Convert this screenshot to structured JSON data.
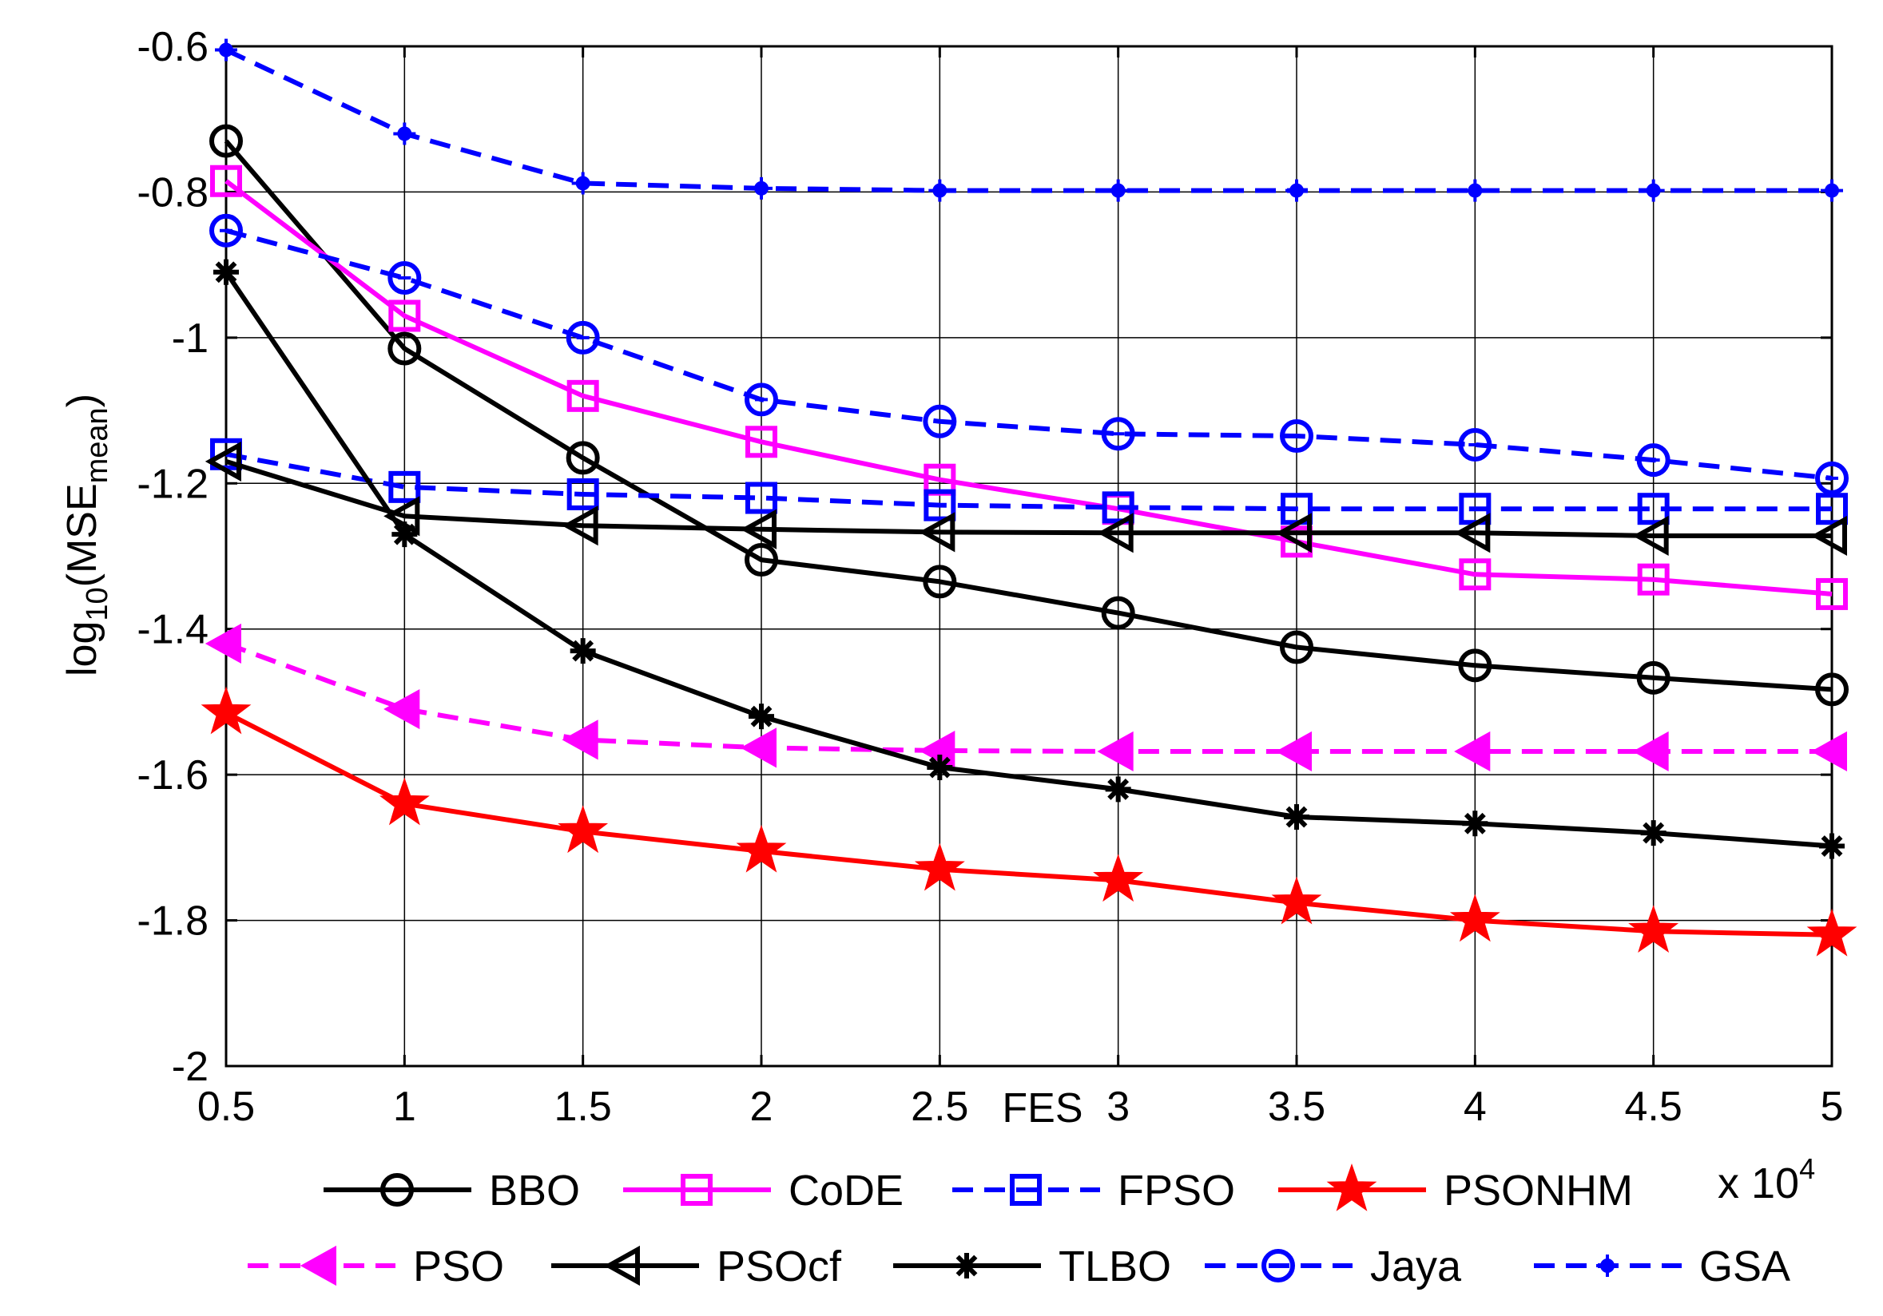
{
  "chart_data": {
    "type": "line",
    "title": "",
    "xlabel": "FES",
    "x_multiplier": "x 10",
    "x_multiplier_exp": "4",
    "ylabel_base": "log",
    "ylabel_sub": "10",
    "ylabel_open": "(MSE",
    "ylabel_inner_sub": "mean",
    "ylabel_close": ")",
    "xlim": [
      0.5,
      5
    ],
    "ylim": [
      -2,
      -0.6
    ],
    "x": [
      0.5,
      1,
      1.5,
      2,
      2.5,
      3,
      3.5,
      4,
      4.5,
      5
    ],
    "xticks": [
      "0.5",
      "1",
      "1.5",
      "2",
      "2.5",
      "3",
      "3.5",
      "4",
      "4.5",
      "5"
    ],
    "yticks": [
      "-0.6",
      "-0.8",
      "-1",
      "-1.2",
      "-1.4",
      "-1.6",
      "-1.8",
      "-2"
    ],
    "ytick_values": [
      -0.6,
      -0.8,
      -1,
      -1.2,
      -1.4,
      -1.6,
      -1.8,
      -2
    ],
    "grid": true,
    "legend_position": "bottom",
    "series": [
      {
        "name": "BBO",
        "color": "#000000",
        "dash": "solid",
        "marker": "circle",
        "values": [
          -0.73,
          -1.015,
          -1.165,
          -1.305,
          -1.335,
          -1.378,
          -1.425,
          -1.45,
          -1.467,
          -1.483
        ]
      },
      {
        "name": "CoDE",
        "color": "#ff00ff",
        "dash": "solid",
        "marker": "square",
        "values": [
          -0.785,
          -0.97,
          -1.08,
          -1.143,
          -1.195,
          -1.235,
          -1.28,
          -1.325,
          -1.332,
          -1.352
        ]
      },
      {
        "name": "FPSO",
        "color": "#0000ff",
        "dash": "dashed",
        "marker": "square",
        "values": [
          -1.16,
          -1.205,
          -1.215,
          -1.22,
          -1.23,
          -1.233,
          -1.235,
          -1.235,
          -1.235,
          -1.235
        ]
      },
      {
        "name": "PSONHM",
        "color": "#ff0000",
        "dash": "solid",
        "marker": "star",
        "values": [
          -1.515,
          -1.64,
          -1.678,
          -1.705,
          -1.73,
          -1.745,
          -1.776,
          -1.8,
          -1.815,
          -1.82
        ]
      },
      {
        "name": "PSO",
        "color": "#ff00ff",
        "dash": "dashed",
        "marker": "triangle-left",
        "values": [
          -1.42,
          -1.51,
          -1.552,
          -1.563,
          -1.567,
          -1.568,
          -1.568,
          -1.568,
          -1.568,
          -1.568
        ]
      },
      {
        "name": "PSOcf",
        "color": "#000000",
        "dash": "solid",
        "marker": "triangle-left",
        "values": [
          -1.17,
          -1.245,
          -1.258,
          -1.263,
          -1.267,
          -1.268,
          -1.268,
          -1.268,
          -1.272,
          -1.272
        ]
      },
      {
        "name": "TLBO",
        "color": "#000000",
        "dash": "solid",
        "marker": "asterisk",
        "values": [
          -0.91,
          -1.27,
          -1.43,
          -1.52,
          -1.59,
          -1.62,
          -1.658,
          -1.667,
          -1.68,
          -1.698
        ]
      },
      {
        "name": "Jaya",
        "color": "#0000ff",
        "dash": "dashed",
        "marker": "circle-dot",
        "values": [
          -0.853,
          -0.918,
          -1.0,
          -1.085,
          -1.115,
          -1.132,
          -1.135,
          -1.147,
          -1.168,
          -1.193
        ]
      },
      {
        "name": "GSA",
        "color": "#0000ff",
        "dash": "dashed",
        "marker": "dot-plus",
        "values": [
          -0.605,
          -0.72,
          -0.788,
          -0.795,
          -0.798,
          -0.798,
          -0.798,
          -0.798,
          -0.798,
          -0.798
        ]
      }
    ]
  }
}
